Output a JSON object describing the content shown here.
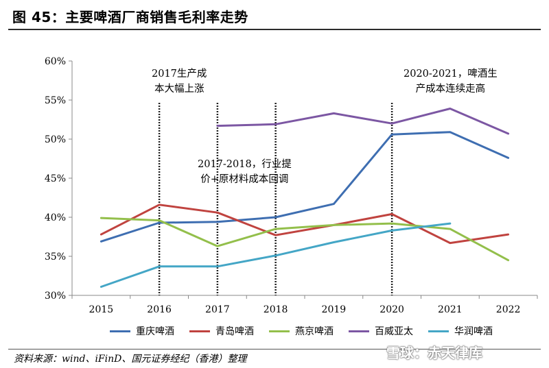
{
  "title": "图 45：主要啤酒厂商销售毛利率走势",
  "source": "资料来源：wind、iFinD、国元证券经纪（香港）整理",
  "watermark": "雪球：赤天律库",
  "chart_data": {
    "type": "line",
    "title": "",
    "xlabel": "",
    "ylabel": "",
    "x": [
      "2015",
      "2016",
      "2017",
      "2018",
      "2019",
      "2020",
      "2021",
      "2022"
    ],
    "y_ticks": [
      "30%",
      "35%",
      "40%",
      "45%",
      "50%",
      "55%",
      "60%"
    ],
    "ylim": [
      30,
      60
    ],
    "grid": false,
    "legend_position": "bottom",
    "series": [
      {
        "name": "重庆啤酒",
        "color": "#3e6eb1",
        "values": [
          36.9,
          39.3,
          39.4,
          40.0,
          41.7,
          50.6,
          50.9,
          47.6
        ]
      },
      {
        "name": "青岛啤酒",
        "color": "#c0433f",
        "values": [
          37.8,
          41.6,
          40.6,
          37.7,
          39.0,
          40.4,
          36.7,
          37.8
        ]
      },
      {
        "name": "燕京啤酒",
        "color": "#93bf4b",
        "values": [
          39.9,
          39.6,
          36.3,
          38.5,
          39.0,
          39.2,
          38.5,
          34.5
        ]
      },
      {
        "name": "百威亚太",
        "color": "#7c57a3",
        "values": [
          null,
          null,
          51.7,
          51.9,
          53.3,
          52.0,
          53.9,
          50.7
        ]
      },
      {
        "name": "华润啤酒",
        "color": "#44a6c6",
        "values": [
          31.1,
          33.7,
          33.7,
          35.1,
          36.8,
          38.3,
          39.2,
          null
        ]
      }
    ],
    "dashed_lines_at": [
      "2016",
      "2017",
      "2018",
      "2020"
    ],
    "annotations": [
      {
        "id": "a1",
        "lines": [
          "2017生产成",
          "本大幅上涨"
        ]
      },
      {
        "id": "a2",
        "lines": [
          "2017-2018，行业提",
          "价+原材料成本回调"
        ]
      },
      {
        "id": "a3",
        "lines": [
          "2020-2021，啤酒生",
          "产成本连续走高"
        ]
      }
    ]
  }
}
